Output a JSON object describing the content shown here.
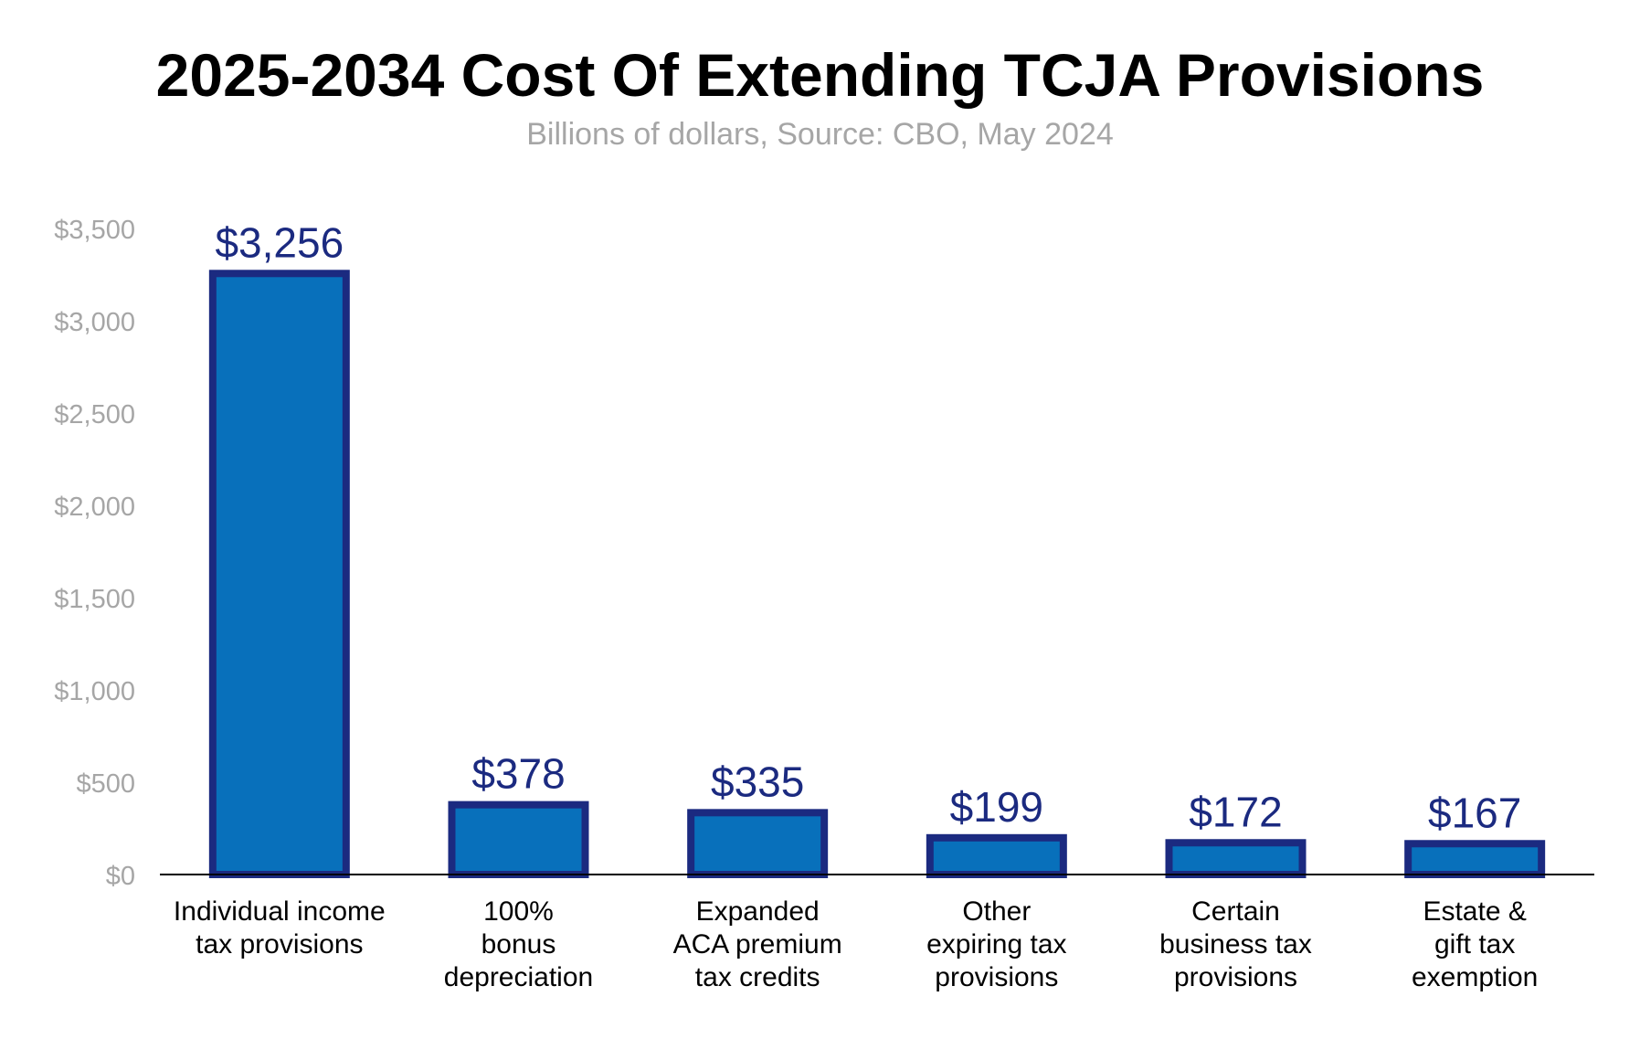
{
  "chart_data": {
    "type": "bar",
    "title": "2025-2034 Cost Of Extending TCJA Provisions",
    "subtitle": "Billions of dollars, Source: CBO, May 2024",
    "categories": [
      [
        "Individual income",
        "tax provisions"
      ],
      [
        "100%",
        "bonus",
        "depreciation"
      ],
      [
        "Expanded",
        "ACA premium",
        "tax credits"
      ],
      [
        "Other",
        "expiring tax",
        "provisions"
      ],
      [
        "Certain",
        "business tax",
        "provisions"
      ],
      [
        "Estate &",
        "gift tax",
        "exemption"
      ]
    ],
    "values": [
      3256,
      378,
      335,
      199,
      172,
      167
    ],
    "data_labels": [
      "$3,256",
      "$378",
      "$335",
      "$199",
      "$172",
      "$167"
    ],
    "ylim": [
      0,
      3500
    ],
    "yticks": [
      0,
      500,
      1000,
      1500,
      2000,
      2500,
      3000,
      3500
    ],
    "ytick_labels": [
      "$0",
      "$500",
      "$1,000",
      "$1,500",
      "$2,000",
      "$2,500",
      "$3,000",
      "$3,500"
    ],
    "xlabel": "",
    "ylabel": "",
    "grid": false,
    "colors": {
      "bar_fill": "#0870bb",
      "bar_border": "#1b2a80",
      "data_label": "#1b2a80",
      "tick_label": "#a6a6a6",
      "subtitle": "#a6a6a6",
      "axis_line": "#000000",
      "category_label": "#000000"
    }
  }
}
